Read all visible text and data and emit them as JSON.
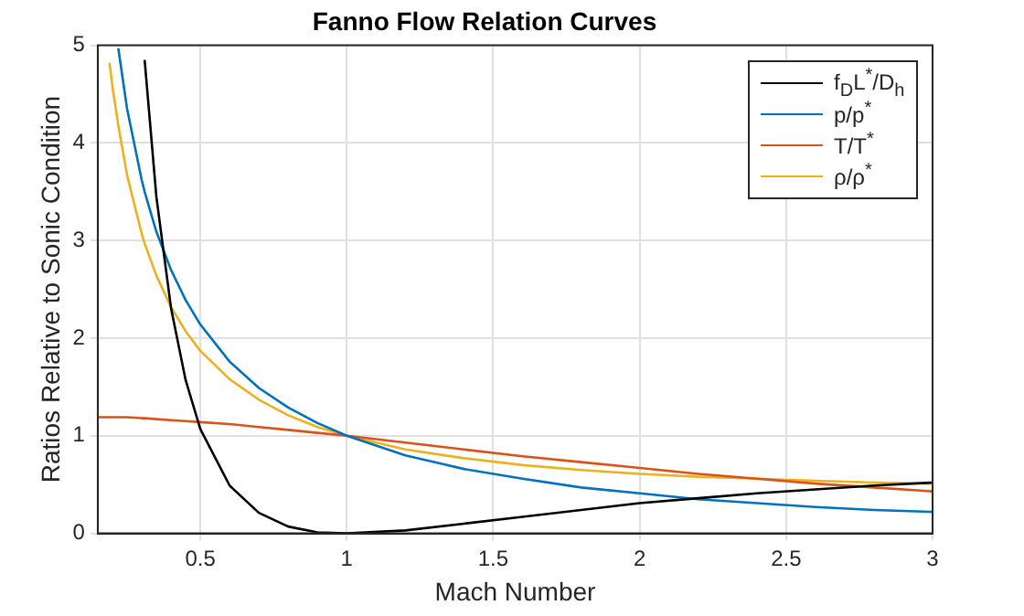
{
  "chart_data": {
    "type": "line",
    "title": "Fanno Flow Relation Curves",
    "xlabel": "Mach Number",
    "ylabel": "Ratios Relative to Sonic Condition",
    "x": [
      0.15,
      0.19,
      0.2,
      0.22,
      0.25,
      0.3,
      0.31,
      0.35,
      0.4,
      0.45,
      0.5,
      0.6,
      0.7,
      0.8,
      0.9,
      1,
      1.2,
      1.4,
      1.6,
      1.8,
      2,
      2.2,
      2.4,
      2.6,
      2.8,
      3
    ],
    "series": [
      {
        "name": "f$_{D}$L$^{*}$/D$_{h}$",
        "color": "#000000",
        "values": [
          null,
          null,
          null,
          null,
          null,
          null,
          4.85,
          3.45,
          2.31,
          1.57,
          1.07,
          0.49,
          0.21,
          0.07,
          0.01,
          0,
          0.03,
          0.1,
          0.17,
          0.24,
          0.31,
          0.36,
          0.41,
          0.45,
          0.49,
          0.52
        ]
      },
      {
        "name": "p/p$^{*}$",
        "color": "#0072bd",
        "values": [
          null,
          null,
          null,
          4.97,
          4.35,
          3.62,
          3.5,
          3.09,
          2.7,
          2.39,
          2.14,
          1.76,
          1.49,
          1.29,
          1.13,
          1,
          0.8,
          0.66,
          0.56,
          0.47,
          0.41,
          0.35,
          0.31,
          0.27,
          0.24,
          0.22
        ]
      },
      {
        "name": "T/T$^{*}$",
        "color": "#d95319",
        "values": [
          1.19,
          1.19,
          1.19,
          1.19,
          1.19,
          1.18,
          1.18,
          1.17,
          1.16,
          1.15,
          1.14,
          1.12,
          1.09,
          1.06,
          1.03,
          1,
          0.93,
          0.86,
          0.79,
          0.73,
          0.67,
          0.61,
          0.56,
          0.51,
          0.47,
          0.43
        ]
      },
      {
        "name": "ρ/ρ$^{*}$",
        "color": "#edb120",
        "values": [
          null,
          4.82,
          4.58,
          4.18,
          3.67,
          3.07,
          2.97,
          2.64,
          2.32,
          2.07,
          1.87,
          1.58,
          1.37,
          1.21,
          1.09,
          1,
          0.86,
          0.77,
          0.7,
          0.65,
          0.61,
          0.58,
          0.56,
          0.54,
          0.52,
          0.51
        ]
      }
    ],
    "xlim": [
      0.15,
      3
    ],
    "xticks": [
      0.5,
      1,
      1.5,
      2,
      2.5,
      3
    ],
    "ylim": [
      0,
      5
    ],
    "yticks": [
      0,
      1,
      2,
      3,
      4,
      5
    ],
    "grid": true,
    "legend": "top right",
    "marker": "none",
    "line_style": "solid"
  }
}
